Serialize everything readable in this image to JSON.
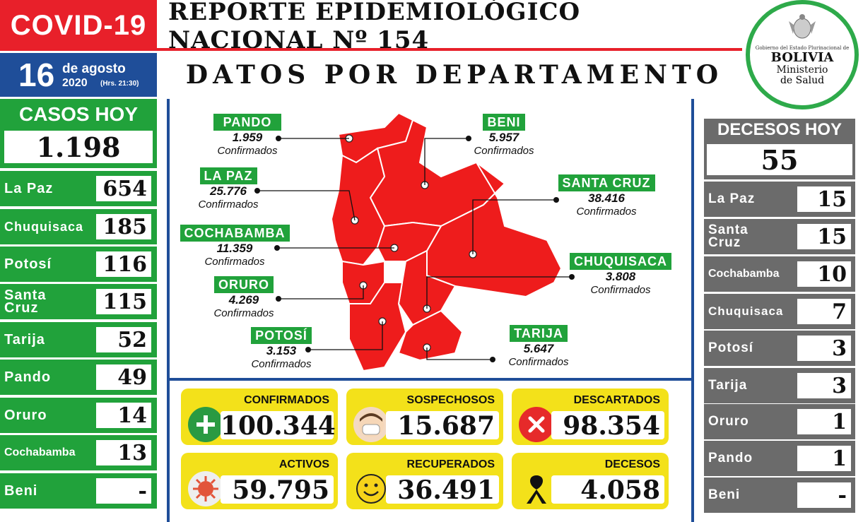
{
  "header": {
    "covid_label": "COVID-19",
    "report_title": "REPORTE EPIDEMIOLÓGICO NACIONAL Nº 154",
    "section_title": "DATOS POR DEPARTAMENTO",
    "date_day": "16",
    "date_month": "de agosto",
    "date_year": "2020",
    "date_hrs": "(Hrs. 21:30)"
  },
  "logo": {
    "gov_text": "Gobierno del Estado Plurinacional de",
    "country": "BOLIVIA",
    "ministry_line1": "Ministerio",
    "ministry_line2": "de Salud"
  },
  "cases_today": {
    "title": "CASOS HOY",
    "total": "1.198",
    "rows": [
      {
        "label": "La Paz",
        "value": "654"
      },
      {
        "label": "Chuquisaca",
        "value": "185"
      },
      {
        "label": "Potosí",
        "value": "116"
      },
      {
        "label": "Santa Cruz",
        "value": "115"
      },
      {
        "label": "Tarija",
        "value": "52"
      },
      {
        "label": "Pando",
        "value": "49"
      },
      {
        "label": "Oruro",
        "value": "14"
      },
      {
        "label": "Cochabamba",
        "value": "13"
      },
      {
        "label": "Beni",
        "value": "-"
      }
    ]
  },
  "deaths_today": {
    "title": "DECESOS HOY",
    "total": "55",
    "rows": [
      {
        "label": "La Paz",
        "value": "15"
      },
      {
        "label": "Santa Cruz",
        "value": "15"
      },
      {
        "label": "Cochabamba",
        "value": "10"
      },
      {
        "label": "Chuquisaca",
        "value": "7"
      },
      {
        "label": "Potosí",
        "value": "3"
      },
      {
        "label": "Tarija",
        "value": "3"
      },
      {
        "label": "Oruro",
        "value": "1"
      },
      {
        "label": "Pando",
        "value": "1"
      },
      {
        "label": "Beni",
        "value": "-"
      }
    ]
  },
  "map_labels": {
    "confirmed_word": "Confirmados",
    "pando": {
      "name": "PANDO",
      "value": "1.959"
    },
    "beni": {
      "name": "BENI",
      "value": "5.957"
    },
    "la_paz": {
      "name": "LA PAZ",
      "value": "25.776"
    },
    "santa_cruz": {
      "name": "SANTA CRUZ",
      "value": "38.416"
    },
    "cochabamba": {
      "name": "COCHABAMBA",
      "value": "11.359"
    },
    "chuquisaca": {
      "name": "CHUQUISACA",
      "value": "3.808"
    },
    "oruro": {
      "name": "ORURO",
      "value": "4.269"
    },
    "potosi": {
      "name": "POTOSÍ",
      "value": "3.153"
    },
    "tarija": {
      "name": "TARIJA",
      "value": "5.647"
    }
  },
  "totals": {
    "confirmados": {
      "label": "CONFIRMADOS",
      "value": "100.344",
      "icon": "plus-icon"
    },
    "sospechosos": {
      "label": "SOSPECHOSOS",
      "value": "15.687",
      "icon": "masked-face-icon"
    },
    "descartados": {
      "label": "DESCARTADOS",
      "value": "98.354",
      "icon": "x-circle-icon"
    },
    "activos": {
      "label": "ACTIVOS",
      "value": "59.795",
      "icon": "virus-icon"
    },
    "recuperados": {
      "label": "RECUPERADOS",
      "value": "36.491",
      "icon": "smiley-icon"
    },
    "decesos": {
      "label": "DECESOS",
      "value": "4.058",
      "icon": "mourning-ribbon-icon"
    }
  },
  "colors": {
    "red": "#e8202a",
    "green": "#21a23b",
    "blue": "#1f4e99",
    "gray": "#6b6b6b",
    "yellow": "#f3e11a"
  }
}
